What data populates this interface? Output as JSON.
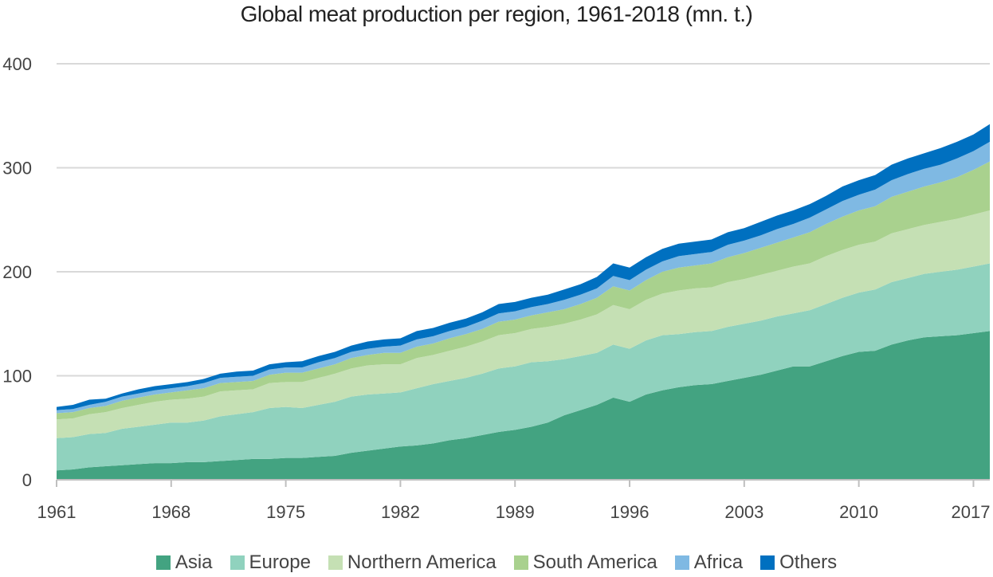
{
  "chart_data": {
    "type": "area",
    "stacked": true,
    "title": "Global meat production per region, 1961-2018 (mn. t.)",
    "xlabel": "",
    "ylabel": "",
    "x": [
      1961,
      1962,
      1963,
      1964,
      1965,
      1966,
      1967,
      1968,
      1969,
      1970,
      1971,
      1972,
      1973,
      1974,
      1975,
      1976,
      1977,
      1978,
      1979,
      1980,
      1981,
      1982,
      1983,
      1984,
      1985,
      1986,
      1987,
      1988,
      1989,
      1990,
      1991,
      1992,
      1993,
      1994,
      1995,
      1996,
      1997,
      1998,
      1999,
      2000,
      2001,
      2002,
      2003,
      2004,
      2005,
      2006,
      2007,
      2008,
      2009,
      2010,
      2011,
      2012,
      2013,
      2014,
      2015,
      2016,
      2017,
      2018
    ],
    "x_ticks": [
      "1961",
      "1968",
      "1975",
      "1982",
      "1989",
      "1996",
      "2003",
      "2010",
      "2017"
    ],
    "x_tick_values": [
      1961,
      1968,
      1975,
      1982,
      1989,
      1996,
      2003,
      2010,
      2017
    ],
    "y_ticks": [
      "0",
      "100",
      "200",
      "300",
      "400"
    ],
    "y_tick_values": [
      0,
      100,
      200,
      300,
      400
    ],
    "ylim": [
      0,
      400
    ],
    "xlim": [
      1961,
      2018
    ],
    "grid": "horizontal",
    "legend_position": "bottom",
    "series": [
      {
        "name": "Asia",
        "color": "#43a381",
        "values": [
          9,
          10,
          12,
          13,
          14,
          15,
          16,
          16,
          17,
          17,
          18,
          19,
          20,
          20,
          21,
          21,
          22,
          23,
          26,
          28,
          30,
          32,
          33,
          35,
          38,
          40,
          43,
          46,
          48,
          51,
          55,
          62,
          67,
          72,
          79,
          75,
          82,
          86,
          89,
          91,
          92,
          95,
          98,
          101,
          105,
          109,
          109,
          114,
          119,
          123,
          124,
          130,
          134,
          137,
          138,
          139,
          141,
          143
        ]
      },
      {
        "name": "Europe",
        "color": "#90d2be",
        "values": [
          31,
          31,
          32,
          32,
          35,
          36,
          37,
          39,
          38,
          40,
          43,
          44,
          45,
          49,
          49,
          48,
          50,
          52,
          54,
          54,
          53,
          52,
          55,
          57,
          57,
          58,
          59,
          61,
          61,
          62,
          59,
          54,
          52,
          50,
          51,
          51,
          52,
          53,
          51,
          51,
          51,
          52,
          52,
          52,
          52,
          51,
          54,
          55,
          56,
          57,
          59,
          60,
          60,
          61,
          62,
          63,
          64,
          65
        ]
      },
      {
        "name": "Northern America",
        "color": "#c5e0b4",
        "values": [
          18,
          18,
          19,
          20,
          20,
          21,
          22,
          22,
          23,
          23,
          24,
          23,
          22,
          24,
          24,
          25,
          26,
          27,
          27,
          28,
          28,
          27,
          29,
          28,
          29,
          30,
          31,
          32,
          32,
          32,
          33,
          34,
          35,
          37,
          38,
          38,
          39,
          40,
          42,
          42,
          42,
          43,
          43,
          44,
          44,
          45,
          45,
          46,
          46,
          46,
          46,
          47,
          47,
          47,
          48,
          49,
          50,
          51
        ]
      },
      {
        "name": "South America",
        "color": "#a9d18e",
        "values": [
          6,
          6,
          6,
          6,
          7,
          7,
          7,
          7,
          8,
          8,
          8,
          8,
          8,
          8,
          9,
          9,
          9,
          9,
          10,
          10,
          11,
          11,
          11,
          11,
          12,
          12,
          12,
          13,
          13,
          13,
          14,
          14,
          15,
          16,
          18,
          18,
          19,
          21,
          22,
          22,
          23,
          24,
          25,
          26,
          27,
          28,
          30,
          31,
          32,
          33,
          34,
          35,
          36,
          37,
          38,
          40,
          43,
          47
        ]
      },
      {
        "name": "Africa",
        "color": "#7fb9e3",
        "values": [
          3,
          3,
          3,
          4,
          4,
          4,
          4,
          4,
          4,
          5,
          5,
          5,
          5,
          5,
          5,
          5,
          6,
          6,
          6,
          6,
          6,
          7,
          7,
          7,
          7,
          7,
          8,
          8,
          8,
          8,
          8,
          9,
          9,
          9,
          10,
          10,
          10,
          10,
          11,
          11,
          11,
          12,
          12,
          12,
          13,
          13,
          14,
          14,
          15,
          15,
          16,
          16,
          17,
          17,
          17,
          18,
          18,
          19
        ]
      },
      {
        "name": "Others",
        "color": "#0070c0",
        "values": [
          3,
          4,
          5,
          3,
          3,
          4,
          4,
          4,
          4,
          4,
          4,
          5,
          5,
          5,
          5,
          6,
          6,
          6,
          6,
          7,
          7,
          7,
          8,
          8,
          8,
          8,
          8,
          9,
          9,
          9,
          9,
          10,
          10,
          11,
          12,
          12,
          12,
          12,
          12,
          12,
          12,
          12,
          12,
          13,
          13,
          13,
          13,
          13,
          14,
          14,
          14,
          15,
          15,
          15,
          16,
          16,
          16,
          17
        ]
      }
    ]
  }
}
